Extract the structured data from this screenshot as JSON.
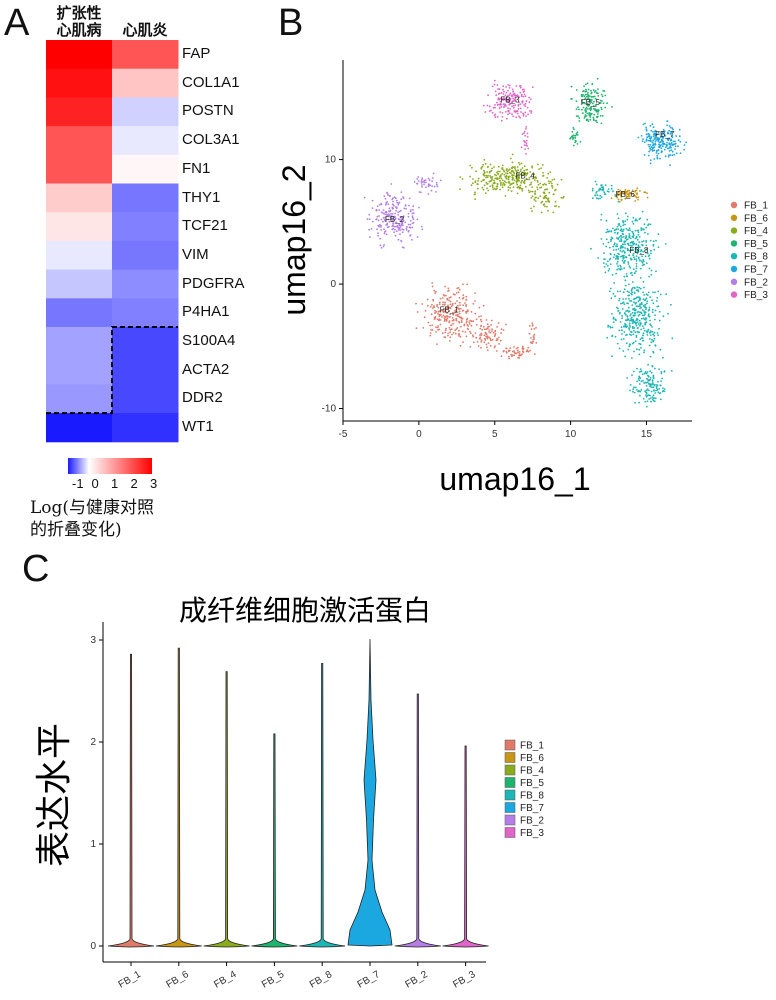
{
  "panels": {
    "a": "A",
    "b": "B",
    "c": "C"
  },
  "chart_data": [
    {
      "type": "heatmap",
      "columns": [
        "扩张性心肌病",
        "心肌炎"
      ],
      "columns_display": [
        [
          "扩张性",
          "心肌病"
        ],
        [
          "心肌炎"
        ]
      ],
      "rows": [
        "FAP",
        "COL1A1",
        "POSTN",
        "COL3A1",
        "FN1",
        "THY1",
        "TCF21",
        "VIM",
        "PDGFRA",
        "P4HA1",
        "S100A4",
        "ACTA2",
        "DDR2",
        "WT1"
      ],
      "values": [
        [
          3.0,
          2.0
        ],
        [
          2.8,
          0.7
        ],
        [
          2.6,
          -0.2
        ],
        [
          2.0,
          -0.1
        ],
        [
          2.0,
          0.1
        ],
        [
          0.6,
          -0.6
        ],
        [
          0.3,
          -0.55
        ],
        [
          -0.1,
          -0.6
        ],
        [
          -0.25,
          -0.5
        ],
        [
          -0.6,
          -0.55
        ],
        [
          -0.4,
          -0.8
        ],
        [
          -0.4,
          -0.8
        ],
        [
          -0.45,
          -0.8
        ],
        [
          -1.3,
          -0.9
        ]
      ],
      "colorbar": {
        "min": -1,
        "max": 3,
        "ticks": [
          "-1",
          "0",
          "1",
          "2",
          "3"
        ],
        "colors": {
          "low": "#1a1aff",
          "mid": "#ffffff",
          "high": "#ff0000"
        }
      },
      "colorbar_title": [
        "Log(与健康对照",
        "的折叠变化)"
      ]
    },
    {
      "type": "scatter",
      "xlabel": "umap16_1",
      "ylabel": "umap16_2",
      "xlim": [
        -5,
        18
      ],
      "ylim": [
        -11,
        18
      ],
      "xticks": [
        -5,
        0,
        5,
        10,
        15
      ],
      "yticks": [
        -10,
        0,
        10
      ],
      "legend_position": "right",
      "series": [
        {
          "name": "FB_1",
          "color": "#e07b6b",
          "label_at": [
            2.0,
            -2.3
          ]
        },
        {
          "name": "FB_6",
          "color": "#c89516",
          "label_at": [
            13.6,
            7.0
          ]
        },
        {
          "name": "FB_4",
          "color": "#8aab1e",
          "label_at": [
            7.0,
            8.5
          ]
        },
        {
          "name": "FB_5",
          "color": "#1eb36e",
          "label_at": [
            11.3,
            14.4
          ]
        },
        {
          "name": "FB_8",
          "color": "#1cb6b4",
          "label_at": [
            14.5,
            2.5
          ]
        },
        {
          "name": "FB_7",
          "color": "#1ba7e0",
          "label_at": [
            16.2,
            11.8
          ]
        },
        {
          "name": "FB_2",
          "color": "#b57ee6",
          "label_at": [
            -1.6,
            5.0
          ]
        },
        {
          "name": "FB_3",
          "color": "#e065c8",
          "label_at": [
            6.0,
            14.6
          ]
        }
      ]
    },
    {
      "type": "violin",
      "title": "成纤维细胞激活蛋白",
      "ylabel": "表达水平",
      "ylim": [
        0,
        3
      ],
      "yticks": [
        0,
        1,
        2,
        3
      ],
      "legend_position": "right",
      "categories": [
        "FB_1",
        "FB_6",
        "FB_4",
        "FB_5",
        "FB_8",
        "FB_7",
        "FB_2",
        "FB_3"
      ],
      "max_values": [
        2.86,
        2.92,
        2.69,
        2.08,
        2.77,
        3.01,
        2.47,
        1.96
      ],
      "colors": [
        "#e07b6b",
        "#c89516",
        "#8aab1e",
        "#1eb36e",
        "#1cb6b4",
        "#1ba7e0",
        "#b57ee6",
        "#e065c8"
      ],
      "legend": [
        "FB_1",
        "FB_6",
        "FB_4",
        "FB_5",
        "FB_8",
        "FB_7",
        "FB_2",
        "FB_3"
      ]
    }
  ]
}
